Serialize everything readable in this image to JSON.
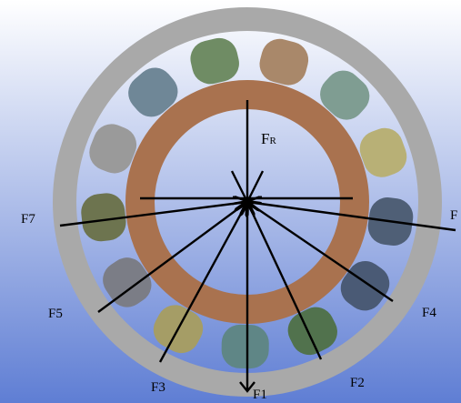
{
  "diagram": {
    "colors": {
      "background_top": "#ffffff",
      "background_bottom": "#5f7ed4",
      "outer_ring": "#a9a9a9",
      "inner_ring": "#a9724f",
      "arrow": "#000000"
    },
    "rollers": [
      {
        "id": "top-left",
        "color": "#6f8c64"
      },
      {
        "id": "top-right",
        "color": "#a9886a"
      },
      {
        "id": "upper-right-1",
        "color": "#7f9d92"
      },
      {
        "id": "upper-right-2",
        "color": "#b8b076"
      },
      {
        "id": "right",
        "color": "#4f5f76"
      },
      {
        "id": "lower-right-1",
        "color": "#4a5a75"
      },
      {
        "id": "lower-right-2",
        "color": "#51724d"
      },
      {
        "id": "bottom",
        "color": "#5f8686"
      },
      {
        "id": "lower-left-2",
        "color": "#a59d66"
      },
      {
        "id": "lower-left-1",
        "color": "#7b7d86"
      },
      {
        "id": "left",
        "color": "#6d744f"
      },
      {
        "id": "upper-left-2",
        "color": "#9a9a9a"
      },
      {
        "id": "upper-left-1",
        "color": "#6f8797"
      }
    ],
    "labels": {
      "fr": "F",
      "fr_sub": "R",
      "f1": "F1",
      "f2": "F2",
      "f3": "F3",
      "f4": "F4",
      "f5": "F5",
      "f6": "F",
      "f7": "F7"
    }
  }
}
